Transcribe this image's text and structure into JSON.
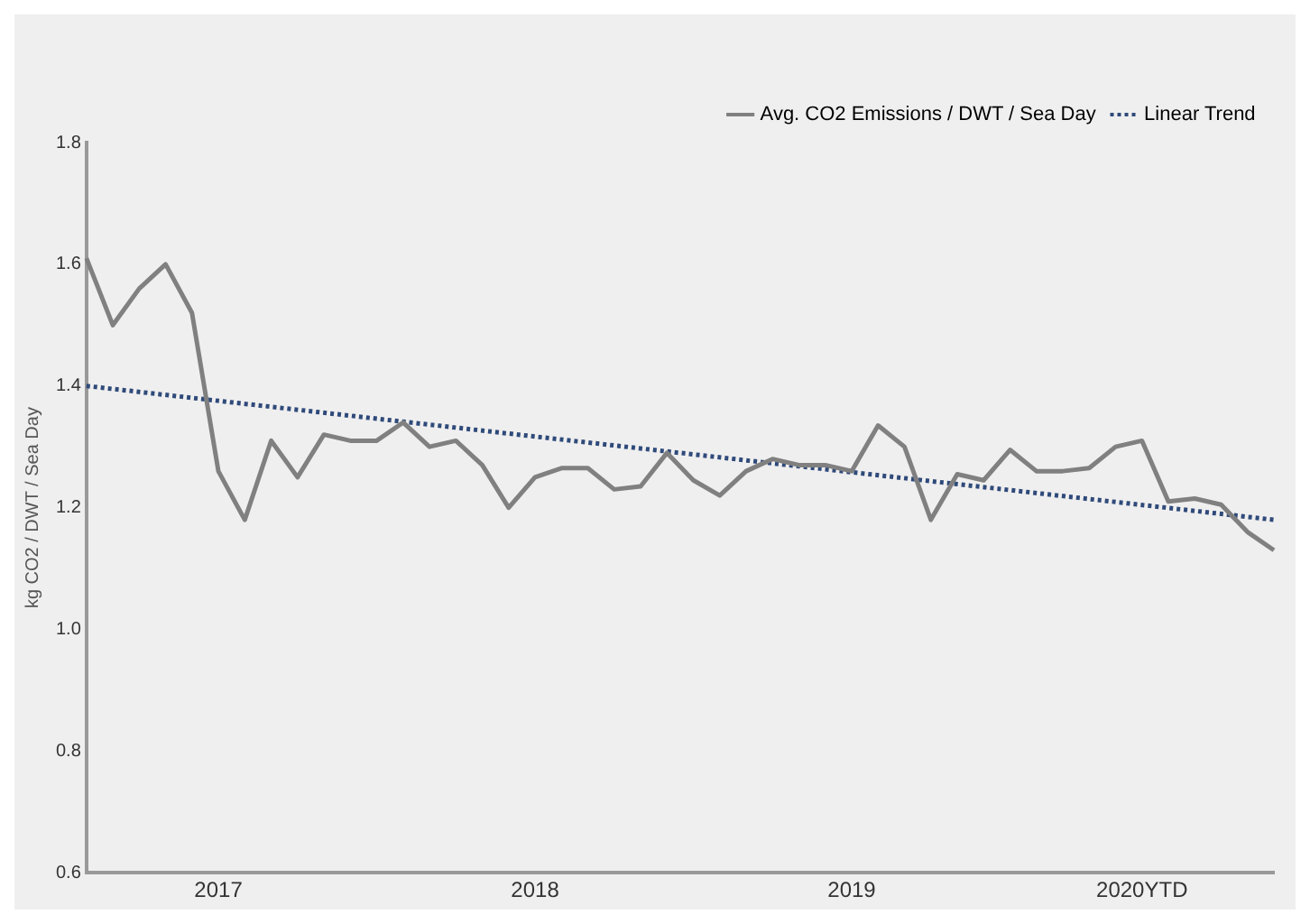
{
  "chart_data": {
    "type": "line",
    "ylabel": "kg CO2 / DWT / Sea Day",
    "categories": [
      null,
      null,
      null,
      null,
      null,
      "2017",
      null,
      null,
      null,
      null,
      null,
      null,
      null,
      null,
      null,
      null,
      null,
      "2018",
      null,
      null,
      null,
      null,
      null,
      null,
      null,
      null,
      null,
      null,
      null,
      "2019",
      null,
      null,
      null,
      null,
      null,
      null,
      null,
      null,
      null,
      null,
      "2020YTD",
      null,
      null,
      null,
      null,
      null
    ],
    "series": [
      {
        "name": "Avg. CO2 Emissions / DWT / Sea Day",
        "color": "#808080",
        "line_style": "solid",
        "values": [
          1.61,
          1.5,
          1.56,
          1.6,
          1.52,
          1.26,
          1.18,
          1.31,
          1.25,
          1.32,
          1.31,
          1.31,
          1.34,
          1.3,
          1.31,
          1.27,
          1.2,
          1.25,
          1.265,
          1.265,
          1.23,
          1.235,
          1.29,
          1.245,
          1.22,
          1.26,
          1.28,
          1.27,
          1.27,
          1.26,
          1.335,
          1.3,
          1.18,
          1.255,
          1.245,
          1.295,
          1.26,
          1.26,
          1.265,
          1.3,
          1.31,
          1.21,
          1.215,
          1.205,
          1.16,
          1.13
        ]
      },
      {
        "name": "Linear Trend",
        "color": "#2f4a7a",
        "line_style": "dotted",
        "values": [
          1.4,
          null,
          null,
          null,
          null,
          null,
          null,
          null,
          null,
          null,
          null,
          null,
          null,
          null,
          null,
          null,
          null,
          null,
          null,
          null,
          null,
          null,
          null,
          null,
          null,
          null,
          null,
          null,
          null,
          null,
          null,
          null,
          null,
          null,
          null,
          null,
          null,
          null,
          null,
          null,
          null,
          null,
          null,
          null,
          null,
          1.18
        ]
      }
    ],
    "ylim": [
      0.6,
      1.8
    ],
    "yticks": [
      0.6,
      0.8,
      {
        "value": 1,
        "label": "1.0"
      },
      1.2,
      1.4,
      1.6,
      1.8
    ],
    "legend": "top right",
    "marker": "none"
  }
}
